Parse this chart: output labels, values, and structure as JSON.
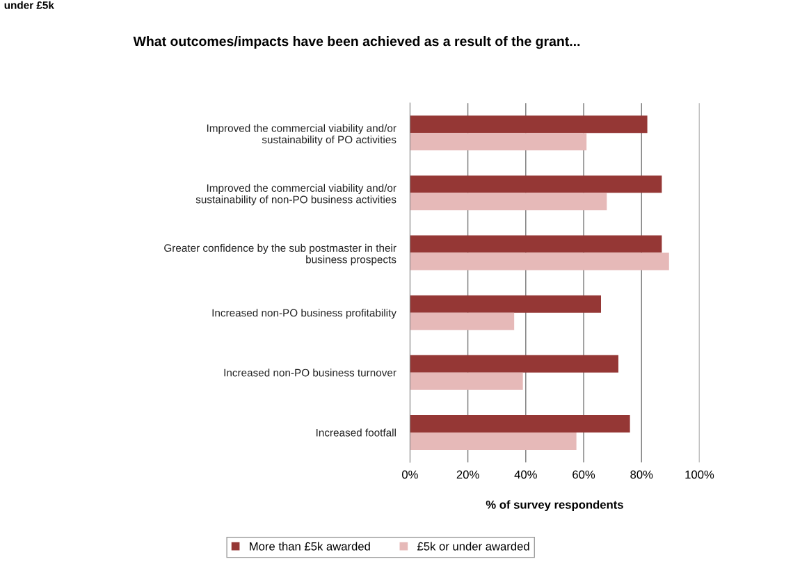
{
  "chart_data": {
    "type": "bar",
    "orientation": "horizontal",
    "title": "What outcomes/impacts have been achieved as a result of the grant...",
    "xlabel": "% of survey respondents",
    "annotations": [
      "under £5k"
    ],
    "categories": [
      "Improved the commercial viability and/or\nsustainability of PO activities",
      "Improved the commercial viability and/or\nsustainability of non-PO business activities",
      "Greater confidence by the sub postmaster in their\nbusiness prospects",
      "Increased non-PO business profitability",
      "Increased non-PO business turnover",
      "Increased footfall"
    ],
    "series": [
      {
        "name": "More than £5k awarded",
        "color": "#953735",
        "values": [
          82,
          87,
          87,
          66,
          72,
          76
        ]
      },
      {
        "name": "£5k or under awarded",
        "color": "#e6b9b8",
        "values": [
          61,
          68,
          89.5,
          36,
          39,
          57.5
        ]
      }
    ],
    "xlim": [
      0,
      100
    ],
    "xticks": [
      {
        "value": 0,
        "label": "0%"
      },
      {
        "value": 20,
        "label": "20%"
      },
      {
        "value": 40,
        "label": "40%"
      },
      {
        "value": 60,
        "label": "60%"
      },
      {
        "value": 80,
        "label": "80%"
      },
      {
        "value": 100,
        "label": "100%"
      }
    ],
    "grid": "x",
    "legend": "bottom"
  }
}
